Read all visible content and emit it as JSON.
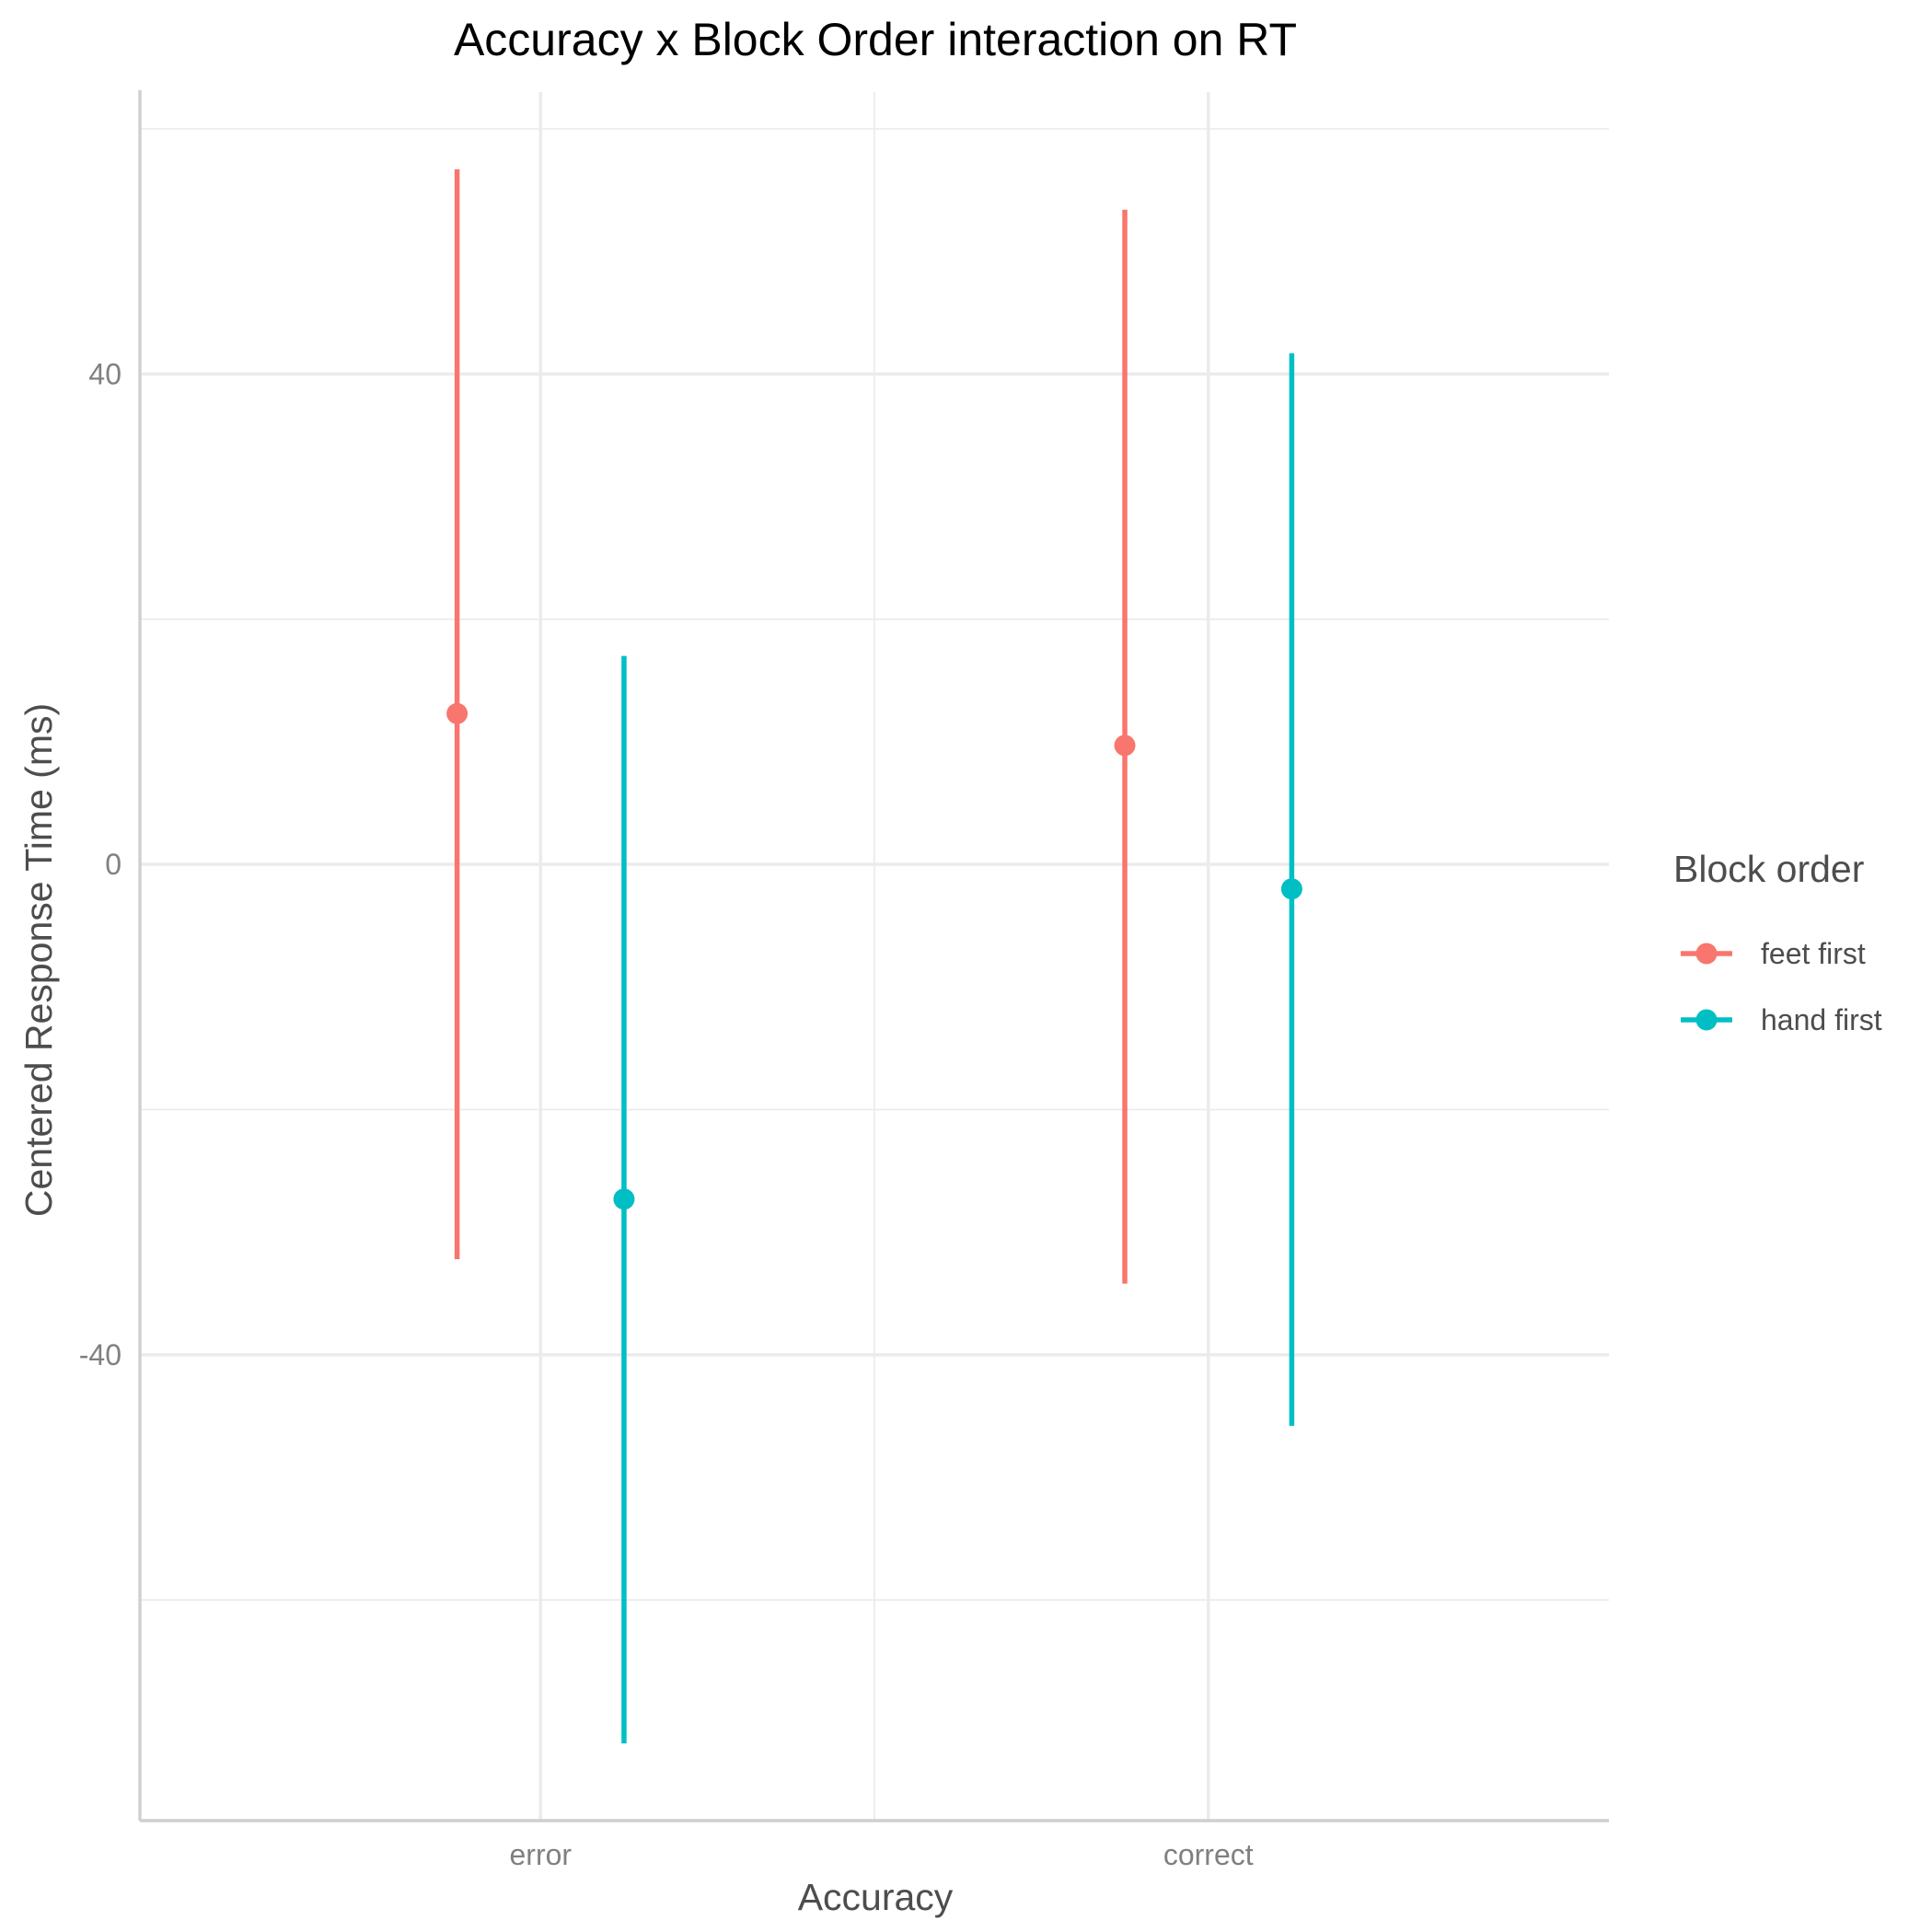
{
  "chart_data": {
    "type": "pointrange",
    "title": "Accuracy x Block Order interaction on RT",
    "xlabel": "Accuracy",
    "ylabel": "Centered Response Time (ms)",
    "categories": [
      "error",
      "correct"
    ],
    "y_ticks": [
      40,
      0,
      -40
    ],
    "y_tick_labels": [
      "40",
      "0",
      "-40"
    ],
    "ylim": [
      -78,
      63
    ],
    "grid": true,
    "legend": {
      "title": "Block order",
      "position": "right"
    },
    "series": [
      {
        "name": "feet first",
        "color": "#F8766D",
        "points": [
          {
            "category": "error",
            "y": 12.3,
            "ymin": -32.2,
            "ymax": 56.7
          },
          {
            "category": "correct",
            "y": 9.7,
            "ymin": -34.2,
            "ymax": 53.4
          }
        ]
      },
      {
        "name": "hand first",
        "color": "#00BFC4",
        "points": [
          {
            "category": "error",
            "y": -27.3,
            "ymin": -71.7,
            "ymax": 17.0
          },
          {
            "category": "correct",
            "y": -2.0,
            "ymin": -45.8,
            "ymax": 41.7
          }
        ]
      }
    ]
  }
}
